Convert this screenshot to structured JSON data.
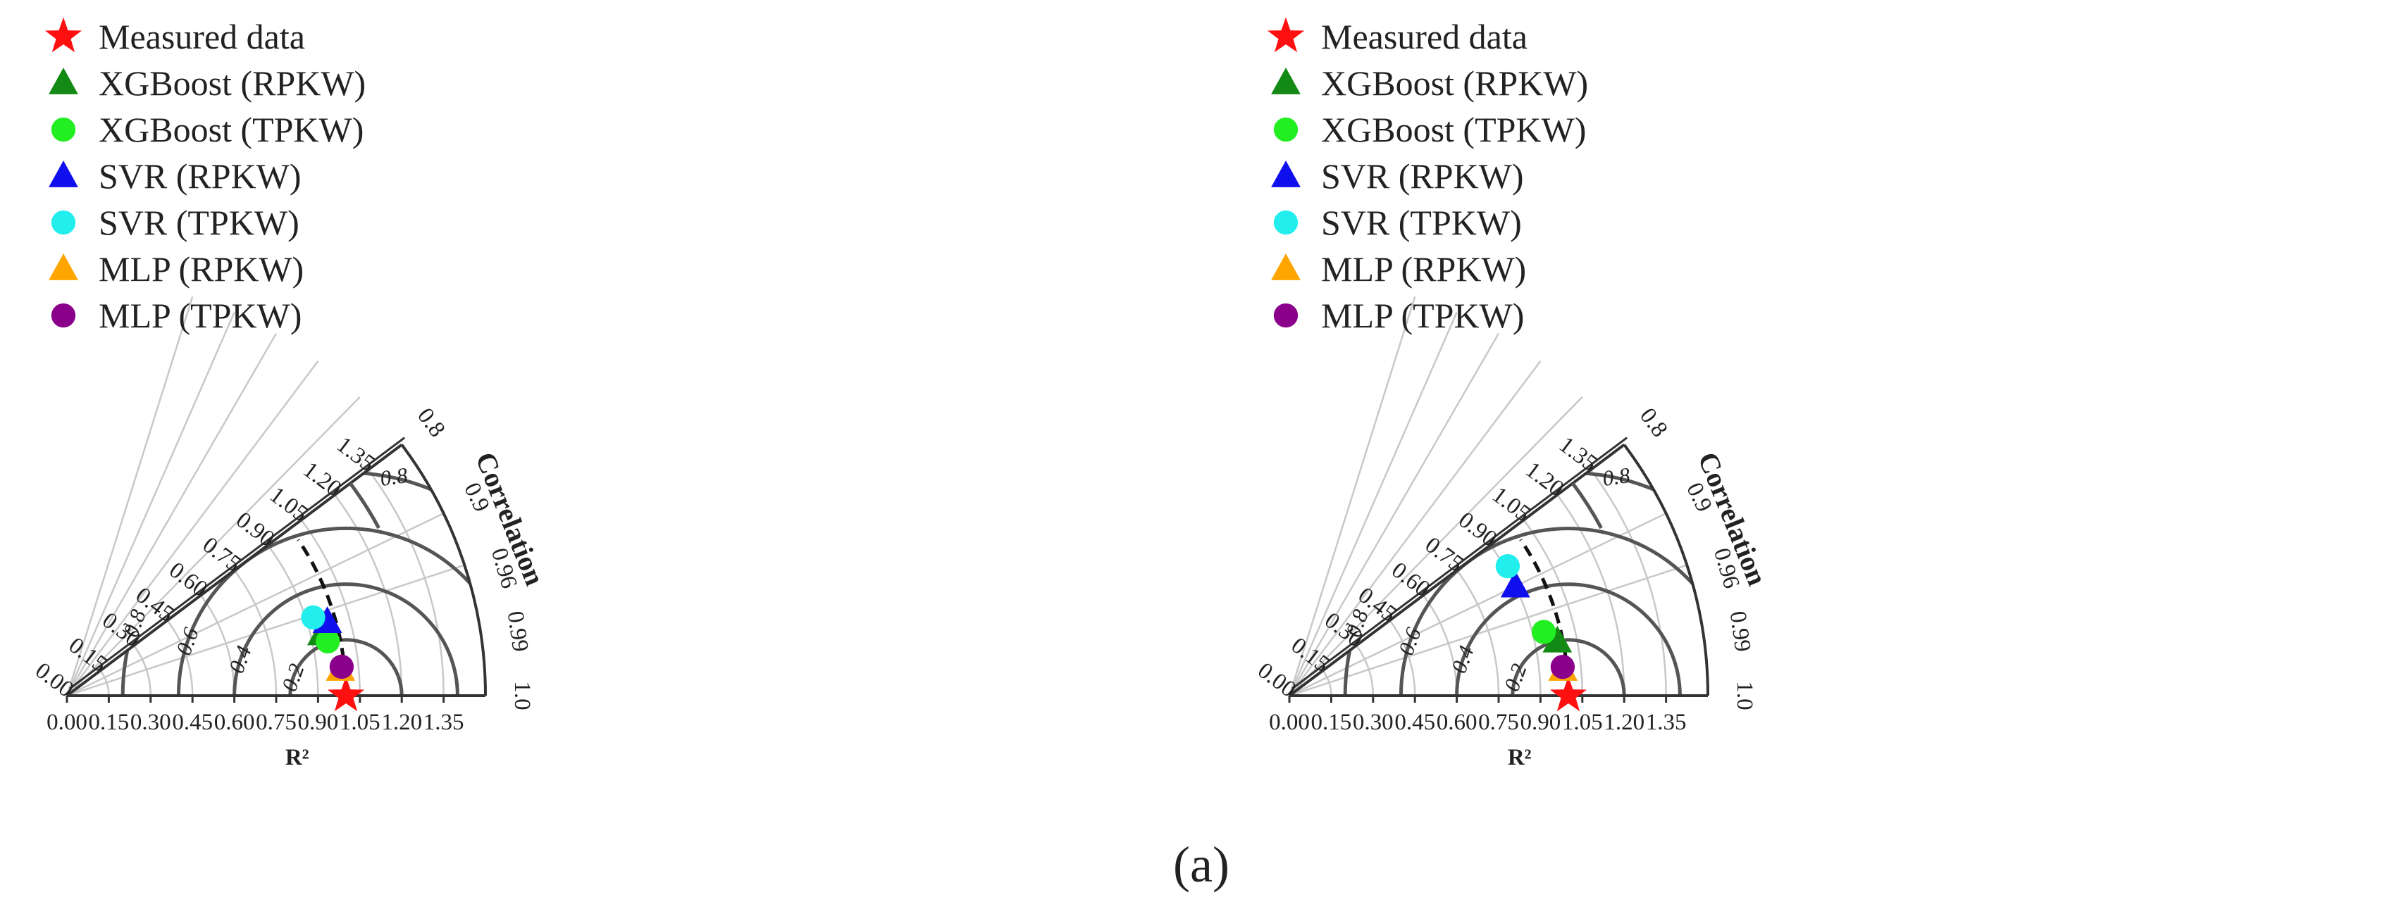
{
  "caption": "(a)",
  "chart_data": [
    {
      "type": "scatter",
      "subtype": "taylor-diagram",
      "panel": "left",
      "xlabel": "R²",
      "corr_label": "Correlation",
      "sd_ticks": [
        "0.00",
        "0.15",
        "0.30",
        "0.45",
        "0.60",
        "0.75",
        "0.90",
        "1.05",
        "1.20",
        "1.35"
      ],
      "sd_max": 1.5,
      "corr_ticks": [
        "1.0",
        "0.99",
        "0.96",
        "0.9",
        "0.8"
      ],
      "rms_rings": [
        "0.2",
        "0.4",
        "0.6",
        "0.8"
      ],
      "rms_arc_label": "0.8",
      "reference_sd": 1.0,
      "legend": [
        "Measured data",
        "XGBoost (RPKW)",
        "XGBoost (TPKW)",
        "SVR (RPKW)",
        "SVR (TPKW)",
        "MLP (RPKW)",
        "MLP (TPKW)"
      ],
      "series": [
        {
          "name": "Measured data",
          "marker": "star",
          "color": "#ff1010",
          "sd": 1.0,
          "corr": 1.0
        },
        {
          "name": "XGBoost (RPKW)",
          "marker": "triangle",
          "color": "#138a13",
          "sd": 0.94,
          "corr": 0.972
        },
        {
          "name": "XGBoost (TPKW)",
          "marker": "circle",
          "color": "#22ee22",
          "sd": 0.955,
          "corr": 0.979
        },
        {
          "name": "SVR (RPKW)",
          "marker": "triangle",
          "color": "#1010ee",
          "sd": 0.97,
          "corr": 0.962
        },
        {
          "name": "SVR (TPKW)",
          "marker": "circle",
          "color": "#22eeee",
          "sd": 0.926,
          "corr": 0.953
        },
        {
          "name": "MLP (RPKW)",
          "marker": "triangle",
          "color": "#ffa500",
          "sd": 0.985,
          "corr": 0.9955
        },
        {
          "name": "MLP (TPKW)",
          "marker": "circle",
          "color": "#8b008b",
          "sd": 0.99,
          "corr": 0.9945
        }
      ]
    },
    {
      "type": "scatter",
      "subtype": "taylor-diagram",
      "panel": "right",
      "xlabel": "R²",
      "corr_label": "Correlation",
      "sd_ticks": [
        "0.00",
        "0.15",
        "0.30",
        "0.45",
        "0.60",
        "0.75",
        "0.90",
        "1.05",
        "1.20",
        "1.35"
      ],
      "sd_max": 1.5,
      "corr_ticks": [
        "1.0",
        "0.99",
        "0.96",
        "0.9",
        "0.8"
      ],
      "rms_rings": [
        "0.2",
        "0.4",
        "0.6",
        "0.8"
      ],
      "rms_arc_label": "0.8",
      "reference_sd": 1.0,
      "legend": [
        "Measured data",
        "XGBoost (RPKW)",
        "XGBoost (TPKW)",
        "SVR (RPKW)",
        "SVR (TPKW)",
        "MLP (RPKW)",
        "MLP (TPKW)"
      ],
      "series": [
        {
          "name": "Measured data",
          "marker": "star",
          "color": "#ff1010",
          "sd": 1.0,
          "corr": 1.0
        },
        {
          "name": "XGBoost (RPKW)",
          "marker": "triangle",
          "color": "#138a13",
          "sd": 0.98,
          "corr": 0.98
        },
        {
          "name": "XGBoost (TPKW)",
          "marker": "circle",
          "color": "#22ee22",
          "sd": 0.94,
          "corr": 0.97
        },
        {
          "name": "SVR (RPKW)",
          "marker": "triangle",
          "color": "#1010ee",
          "sd": 0.9,
          "corr": 0.9
        },
        {
          "name": "SVR (TPKW)",
          "marker": "circle",
          "color": "#22eeee",
          "sd": 0.91,
          "corr": 0.86
        },
        {
          "name": "MLP (RPKW)",
          "marker": "triangle",
          "color": "#ffa500",
          "sd": 0.985,
          "corr": 0.9955
        },
        {
          "name": "MLP (TPKW)",
          "marker": "circle",
          "color": "#8b008b",
          "sd": 0.985,
          "corr": 0.9945
        }
      ]
    }
  ]
}
